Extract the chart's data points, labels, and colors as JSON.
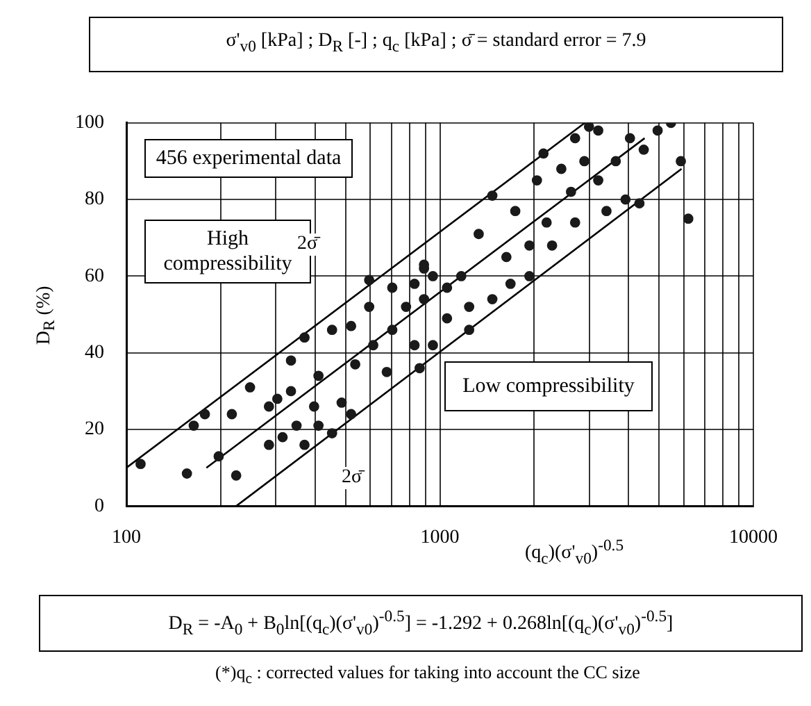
{
  "chart_data": {
    "type": "scatter",
    "title": "σ'$_{v0}$ [kPa]  ;  D$_{R}$ [-]  ; q$_{c}$ [kPa]  ;  σ̄ = standard error = 7.9",
    "xlabel": "(q$_{c}$)(σ'$_{v0}$)$^{-0.5}$",
    "ylabel": "D$_{R}$ (%)",
    "annotations": [
      "456 experimental data",
      "High compressibility",
      "2σ̄",
      "2σ̄",
      "Low compressibility",
      "D$_{R}$ = -A$_{0}$ + B$_{0}$ln[(q$_{c}$)(σ'$_{v0}$)$^{-0.5}$] = -1.292 + 0.268ln[(q$_{c}$)(σ'$_{v0}$)$^{-0.5}$]",
      "(*)q$_{c}$ : corrected values for taking into account the CC size"
    ],
    "log": "x",
    "xlim": [
      100,
      10000
    ],
    "xticks": [
      100,
      {
        "value": 200,
        "label": null
      },
      {
        "value": 300,
        "label": null
      },
      {
        "value": 400,
        "label": null
      },
      {
        "value": 500,
        "label": null
      },
      {
        "value": 600,
        "label": null
      },
      {
        "value": 700,
        "label": null
      },
      {
        "value": 800,
        "label": null
      },
      {
        "value": 900,
        "label": null
      },
      1000,
      {
        "value": 2000,
        "label": null
      },
      {
        "value": 3000,
        "label": null
      },
      {
        "value": 4000,
        "label": null
      },
      {
        "value": 5000,
        "label": null
      },
      {
        "value": 6000,
        "label": null
      },
      {
        "value": 7000,
        "label": null
      },
      {
        "value": 8000,
        "label": null
      },
      {
        "value": 9000,
        "label": null
      },
      10000
    ],
    "ylim": [
      0,
      100
    ],
    "yticks": [
      0,
      20,
      40,
      60,
      80,
      100
    ],
    "grid": true,
    "series": [
      {
        "marker": "circle",
        "color": "#1a1a1a",
        "x": [
          111,
          156,
          224,
          197,
          164,
          178,
          217,
          248,
          285,
          285,
          315,
          303,
          335,
          370,
          349,
          397,
          410,
          453,
          486,
          521,
          335,
          370,
          410,
          453,
          521,
          595,
          613,
          677,
          705,
          830,
          780,
          890,
          950,
          830,
          595,
          705,
          890,
          862,
          537,
          890,
          1054,
          1240,
          1470,
          1170,
          1330,
          1470,
          1740,
          1630,
          1930,
          2040,
          2190,
          2140,
          2440,
          2700,
          2990,
          3200,
          2890,
          2620,
          3200,
          3640,
          4040,
          4470,
          4950,
          5460,
          5870,
          3910,
          4330,
          3400,
          2700,
          2280,
          1930,
          1680,
          1054,
          950,
          1240,
          6200
        ],
        "values": [
          11,
          8.5,
          8,
          13,
          21,
          24,
          24,
          31,
          26,
          16,
          18,
          28,
          30,
          16,
          21,
          26,
          21,
          19,
          27,
          24,
          38,
          44,
          34,
          46,
          47,
          52,
          42,
          35,
          46,
          42,
          52,
          54,
          60,
          58,
          59,
          57,
          62,
          36,
          37,
          63,
          49,
          52,
          54,
          60,
          71,
          81,
          77,
          65,
          68,
          85,
          74,
          92,
          88,
          96,
          99,
          98,
          90,
          82,
          85,
          90,
          96,
          93,
          98,
          100,
          90,
          80,
          79,
          77,
          74,
          68,
          60,
          58,
          57,
          42,
          46,
          75
        ]
      },
      {
        "type": "line",
        "color": "#000000",
        "line_style": "solid",
        "marker": "none",
        "x": [
          100,
          2900
        ],
        "values": [
          10,
          100
        ]
      },
      {
        "type": "line",
        "color": "#000000",
        "line_style": "solid",
        "marker": "none",
        "x": [
          180,
          4500
        ],
        "values": [
          10,
          96
        ]
      },
      {
        "type": "line",
        "color": "#000000",
        "line_style": "solid",
        "marker": "none",
        "x": [
          224,
          5900
        ],
        "values": [
          0,
          88
        ]
      }
    ]
  }
}
